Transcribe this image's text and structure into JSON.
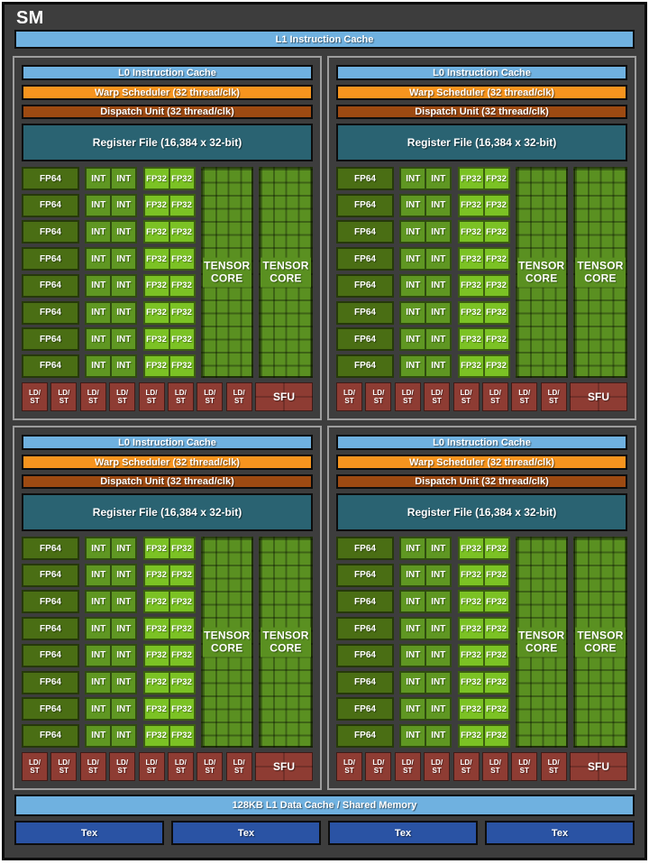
{
  "window": {
    "title": "SM"
  },
  "top_bar": {
    "l1_instruction_cache": "L1 Instruction Cache"
  },
  "processing_block": {
    "l0_instruction_cache": "L0 Instruction Cache",
    "warp_scheduler": "Warp Scheduler (32 thread/clk)",
    "dispatch_unit": "Dispatch Unit (32 thread/clk)",
    "register_file": "Register File (16,384 x 32-bit)",
    "core_grid": {
      "rows": 8,
      "fp64": "FP64",
      "int": "INT",
      "fp32": "FP32"
    },
    "tensor_core": {
      "line1": "TENSOR",
      "line2": "CORE",
      "count": 2
    },
    "ldst": {
      "line1": "LD/",
      "line2": "ST",
      "count": 8
    },
    "sfu": "SFU"
  },
  "block_count": 4,
  "bottom": {
    "l1_data_cache": "128KB L1 Data Cache / Shared Memory",
    "tex_units": [
      {
        "label": "Tex"
      },
      {
        "label": "Tex"
      },
      {
        "label": "Tex"
      },
      {
        "label": "Tex"
      }
    ]
  },
  "colors": {
    "background": "#3d3d3d",
    "light_blue": "#6fb1e0",
    "orange": "#f7941e",
    "dark_orange": "#9d4a12",
    "teal": "#2a6372",
    "fp64_green": "#4a6e14",
    "int_green": "#5f9722",
    "fp32_green": "#7bc224",
    "tensor_green": "#5a9021",
    "ldst_red": "#8e3c33",
    "tex_blue": "#2a53a4"
  }
}
